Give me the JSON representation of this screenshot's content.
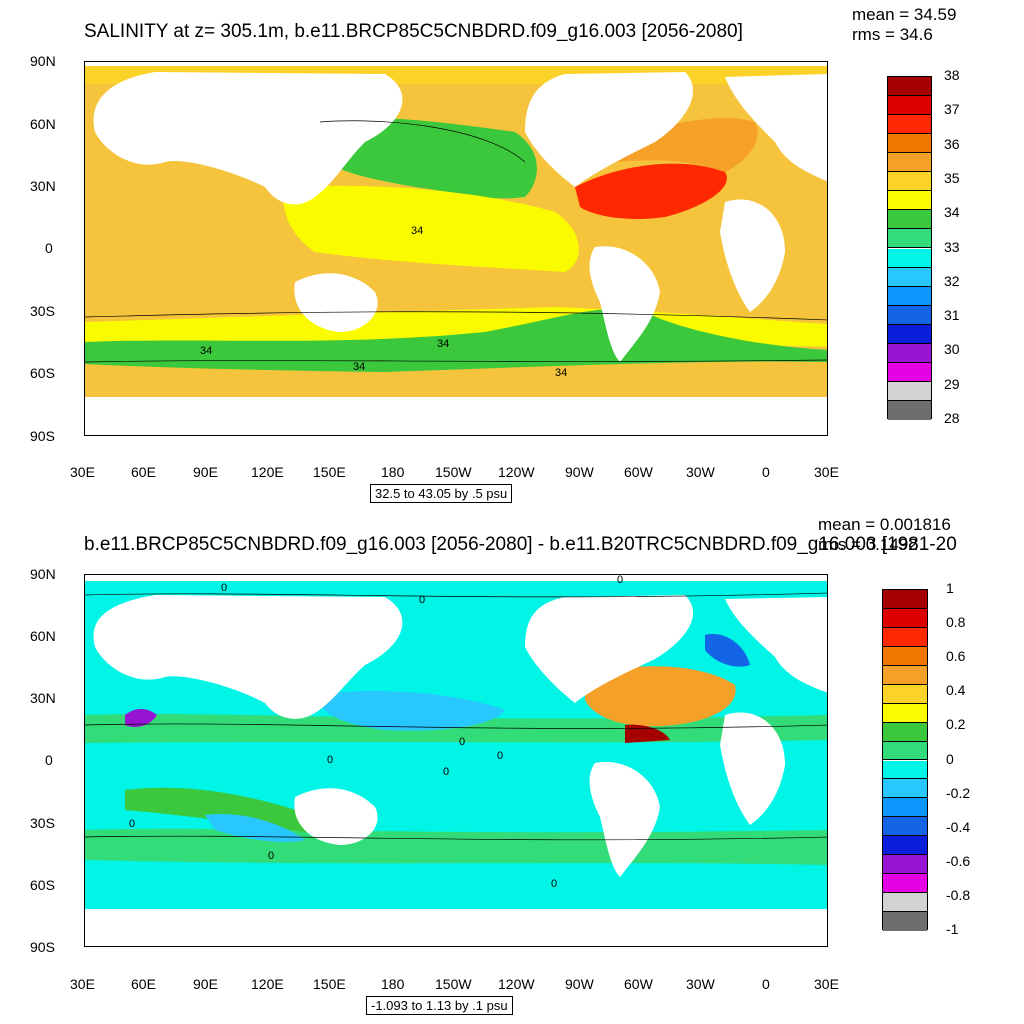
{
  "panels": [
    {
      "title": "SALINITY at z= 305.1m, b.e11.BRCP85C5CNBDRD.f09_g16.003 [2056-2080]",
      "mean": "mean = 34.59",
      "rms": "rms = 34.6",
      "lat_labels": [
        "90N",
        "60N",
        "30N",
        "0",
        "30S",
        "60S",
        "90S"
      ],
      "lon_labels": [
        "30E",
        "60E",
        "90E",
        "120E",
        "150E",
        "180",
        "150W",
        "120W",
        "90W",
        "60W",
        "30W",
        "0",
        "30E"
      ],
      "contour_labels": [
        "34",
        "34",
        "34",
        "34",
        "34"
      ],
      "range_note": "32.5 to 43.05 by .5 psu",
      "legend": {
        "labels": [
          "38",
          "37",
          "36",
          "35",
          "34",
          "33",
          "32",
          "31",
          "30",
          "29",
          "28"
        ],
        "colors": [
          "#a50000",
          "#dc0000",
          "#ff2800",
          "#f07800",
          "#f5a028",
          "#fbd228",
          "#fbfb00",
          "#3cc83c",
          "#32dc78",
          "#00f5e6",
          "#28c8ff",
          "#0a96fa",
          "#1464e6",
          "#0a1edc",
          "#9614d2",
          "#e600e6",
          "#d2d2d2",
          "#6e6e6e"
        ]
      }
    },
    {
      "title": "b.e11.BRCP85C5CNBDRD.f09_g16.003 [2056-2080] - b.e11.B20TRC5CNBDRD.f09_g16.003 [1981-20",
      "mean": "mean = 0.001816",
      "rms": "rms = 0.1492",
      "lat_labels": [
        "90N",
        "60N",
        "30N",
        "0",
        "30S",
        "60S",
        "90S"
      ],
      "lon_labels": [
        "30E",
        "60E",
        "90E",
        "120E",
        "150E",
        "180",
        "150W",
        "120W",
        "90W",
        "60W",
        "30W",
        "0",
        "30E"
      ],
      "contour_labels": [
        "0",
        "0",
        "0",
        "0",
        "0",
        "0",
        "0",
        "0",
        "0",
        "0"
      ],
      "range_note": "-1.093 to 1.13 by .1 psu",
      "legend": {
        "labels": [
          "1",
          "0.8",
          "0.6",
          "0.4",
          "0.2",
          "0",
          "-0.2",
          "-0.4",
          "-0.6",
          "-0.8",
          "-1"
        ],
        "colors": [
          "#a50000",
          "#dc0000",
          "#ff2800",
          "#f07800",
          "#f5a028",
          "#fbd228",
          "#fbfb00",
          "#3cc83c",
          "#32dc78",
          "#00f5e6",
          "#28c8ff",
          "#0a96fa",
          "#1464e6",
          "#0a1edc",
          "#9614d2",
          "#e600e6",
          "#d2d2d2",
          "#6e6e6e"
        ]
      }
    }
  ]
}
